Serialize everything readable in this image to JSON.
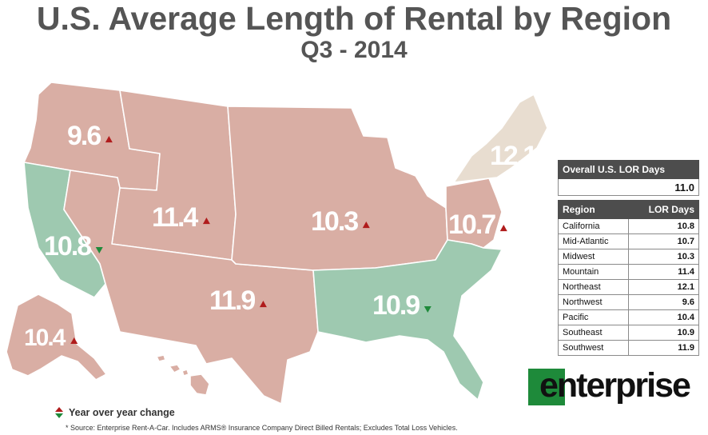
{
  "title": "U.S. Average Length of Rental by Region",
  "subtitle": "Q3 - 2014",
  "colors": {
    "increase_region": "#d9aea4",
    "decrease_region": "#9ec9b0",
    "neutral_region": "#e8ddd0",
    "up_arrow": "#b01c1c",
    "down_arrow": "#1e8a3a",
    "border": "#ffffff",
    "table_header": "#4d4d4d",
    "brand_green": "#1e8a3a"
  },
  "map": {
    "northwest": {
      "value": "9.6",
      "change": "up"
    },
    "california": {
      "value": "10.8",
      "change": "down"
    },
    "mountain": {
      "value": "11.4",
      "change": "up"
    },
    "midwest": {
      "value": "10.3",
      "change": "up"
    },
    "northeast": {
      "value": "12.1",
      "change": "none"
    },
    "mid_atlantic": {
      "value": "10.7",
      "change": "up"
    },
    "southwest": {
      "value": "11.9",
      "change": "up"
    },
    "southeast": {
      "value": "10.9",
      "change": "down"
    },
    "pacific": {
      "value": "10.4",
      "change": "up"
    }
  },
  "overall": {
    "header": "Overall U.S. LOR Days",
    "value": "11.0"
  },
  "table": {
    "headers": [
      "Region",
      "LOR Days"
    ],
    "rows": [
      {
        "region": "California",
        "days": "10.8"
      },
      {
        "region": "Mid-Atlantic",
        "days": "10.7"
      },
      {
        "region": "Midwest",
        "days": "10.3"
      },
      {
        "region": "Mountain",
        "days": "11.4"
      },
      {
        "region": "Northeast",
        "days": "12.1"
      },
      {
        "region": "Northwest",
        "days": "9.6"
      },
      {
        "region": "Pacific",
        "days": "10.4"
      },
      {
        "region": "Southeast",
        "days": "10.9"
      },
      {
        "region": "Southwest",
        "days": "11.9"
      }
    ]
  },
  "legend": {
    "label": "Year over year change",
    "icon": "up-down-arrows-icon"
  },
  "source": "* Source: Enterprise Rent-A-Car. Includes ARMS® Insurance Company Direct Billed Rentals; Excludes Total Loss Vehicles.",
  "logo": {
    "text": "enterprise",
    "icon": "enterprise-e-logo-icon"
  }
}
